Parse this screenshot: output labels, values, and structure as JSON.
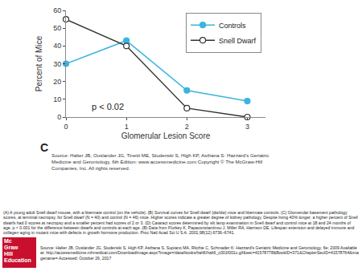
{
  "chart_data": {
    "type": "line",
    "x": [
      0,
      1,
      2,
      3
    ],
    "series": [
      {
        "name": "Controls",
        "color": "#3ab4e0",
        "marker": "circle",
        "values": [
          30,
          43,
          15,
          9
        ]
      },
      {
        "name": "Snell Dwarf",
        "color": "#333333",
        "marker": "open-circle",
        "values": [
          55,
          40,
          5,
          0
        ]
      }
    ],
    "x_label": "Glomerular Lesion Score",
    "y_label": "Percent of Mice",
    "xlim": [
      0,
      3.3
    ],
    "xticks": [
      0,
      1,
      2,
      3
    ],
    "ylim": [
      0,
      60
    ],
    "yticks": [
      0,
      10,
      20,
      30,
      40,
      50,
      60
    ],
    "grid": false,
    "legend": "upper right",
    "annotations": [
      {
        "text": "p < 0.02",
        "x": 0.4,
        "y": 6
      }
    ]
  },
  "panel_label": "C",
  "source": "Source: Halter JB, Ouslander JG, Tinetti ME, Studenski S, High KP, Asthana S: Hazzard's Geriatric Medicine and Gerontology, 6th Edition: www.accessmedicine.com Copyright © The McGraw-Hill Companies, Inc. All rights reserved.",
  "caption": "(A) A young adult Snell dwarf mouse, with a littermate control (on the vehicle). (B) Survival curves for Snell dwarf (dw/dw) mice and littermate controls. (C) Glomerular basement pathology scores, at terminal necropsy, for Snell dwarf (N = 40) and control (N = 46) mice. Higher scores indicate a greater degree of kidney pathology. Despite living 40% longer, a higher percent of Snell dwarfs had 0 scores at necropsy and a smaller percent had scores of 2 or 3. (D) Cataract scores determined by slit lamp examination in Snell dwarf and control mice at 18 and 24 months of age. p < 0.001 for the difference between dwarfs and controls at each age. (B) Data from Flurkey K, Papaconstantinou J, Miller RA, Harrison DE. Lifespan extension and delayed immune and collagen aging in mutant mice with defects in growth hormone production. Proc Natl Acad Sci U S A. 2001;98(12):6736–6741.",
  "caption_source": "Source: Halter JB, Ouslander JG, Studenski S, High KP, Asthana S, Supiano MA, Ritchie C, Schmader K: Hazzard's Geriatric Medicine and Gerontology, 6e; 2009 Available at: http://accessmedicine.mhmedical.com/DownloadImage.aspx?image=/data/books/halt6/halt6_c001f001c.gif&sec=41578778&BookID=371&ChapterSecID=41578764&imagename= Accessed: October 26, 2017",
  "logo": [
    "Mc",
    "Graw",
    "Hill",
    "Education"
  ]
}
